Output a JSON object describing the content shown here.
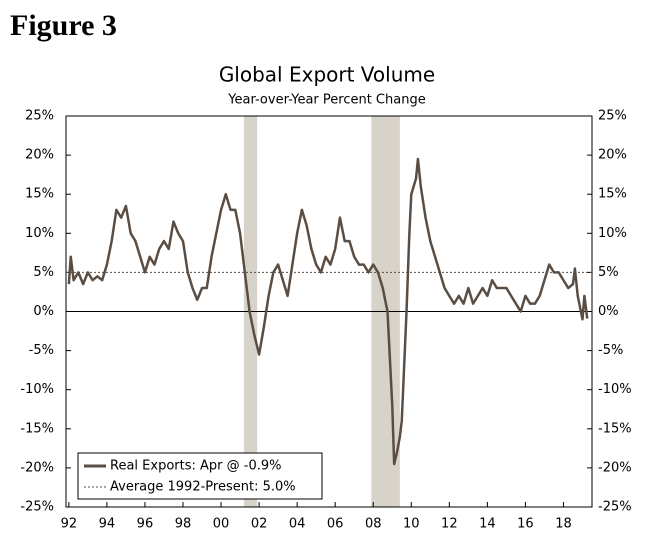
{
  "figure_label": "Figure 3",
  "chart_data": {
    "type": "line",
    "title": "Global Export Volume",
    "subtitle": "Year-over-Year Percent Change",
    "x": [
      1992.0,
      1992.1,
      1992.25,
      1992.5,
      1992.75,
      1993.0,
      1993.25,
      1993.5,
      1993.75,
      1994.0,
      1994.25,
      1994.5,
      1994.75,
      1995.0,
      1995.25,
      1995.5,
      1995.75,
      1996.0,
      1996.25,
      1996.5,
      1996.75,
      1997.0,
      1997.25,
      1997.5,
      1997.75,
      1998.0,
      1998.25,
      1998.5,
      1998.75,
      1999.0,
      1999.25,
      1999.5,
      1999.75,
      2000.0,
      2000.25,
      2000.5,
      2000.75,
      2001.0,
      2001.25,
      2001.5,
      2001.75,
      2002.0,
      2002.25,
      2002.5,
      2002.75,
      2003.0,
      2003.25,
      2003.5,
      2003.75,
      2004.0,
      2004.25,
      2004.5,
      2004.75,
      2005.0,
      2005.25,
      2005.5,
      2005.75,
      2006.0,
      2006.25,
      2006.5,
      2006.75,
      2007.0,
      2007.25,
      2007.5,
      2007.75,
      2008.0,
      2008.25,
      2008.5,
      2008.75,
      2009.0,
      2009.1,
      2009.25,
      2009.4,
      2009.5,
      2009.75,
      2009.9,
      2010.0,
      2010.25,
      2010.35,
      2010.5,
      2010.75,
      2011.0,
      2011.25,
      2011.5,
      2011.75,
      2012.0,
      2012.25,
      2012.5,
      2012.75,
      2013.0,
      2013.25,
      2013.5,
      2013.75,
      2014.0,
      2014.25,
      2014.5,
      2014.75,
      2015.0,
      2015.25,
      2015.5,
      2015.75,
      2016.0,
      2016.25,
      2016.5,
      2016.75,
      2017.0,
      2017.25,
      2017.5,
      2017.75,
      2018.0,
      2018.25,
      2018.5,
      2018.6,
      2018.75,
      2019.0,
      2019.1,
      2019.25
    ],
    "series": [
      {
        "name": "Real Exports: Apr @ -0.9%",
        "color": "#5a4e44",
        "values": [
          3.5,
          7,
          4,
          5,
          3.5,
          5,
          4,
          4.5,
          4,
          6,
          9,
          13,
          12,
          13.5,
          10,
          9,
          7,
          5,
          7,
          6,
          8,
          9,
          8,
          11.5,
          10,
          9,
          5,
          3,
          1.5,
          3,
          3,
          7,
          10,
          13,
          15,
          13,
          13,
          10,
          5,
          0,
          -3,
          -5.5,
          -2,
          2,
          5,
          6,
          4,
          2,
          6,
          10,
          13,
          11,
          8,
          6,
          5,
          7,
          6,
          8,
          12,
          9,
          9,
          7,
          6,
          6,
          5,
          6,
          5,
          3,
          0,
          -12,
          -19.5,
          -18,
          -16,
          -14,
          0,
          10,
          15,
          17,
          19.5,
          16,
          12,
          9,
          7,
          5,
          3,
          2,
          1,
          2,
          1,
          3,
          1,
          2,
          3,
          2,
          4,
          3,
          3,
          3,
          2,
          1,
          0,
          2,
          1,
          1,
          2,
          4,
          6,
          5,
          5,
          4,
          3,
          3.5,
          5.5,
          2,
          -1,
          2,
          -0.9
        ]
      }
    ],
    "reference_line": {
      "name": "Average 1992-Present: 5.0%",
      "value": 5.0,
      "color": "#5a4e44"
    },
    "shaded_regions": [
      {
        "start": 2001.2,
        "end": 2001.9
      },
      {
        "start": 2007.9,
        "end": 2009.4
      }
    ],
    "shade_color": "#d8d3c8",
    "xlim": [
      1991.85,
      2019.5
    ],
    "xticks": [
      {
        "value": 1992,
        "label": "92"
      },
      {
        "value": 1994,
        "label": "94"
      },
      {
        "value": 1996,
        "label": "96"
      },
      {
        "value": 1998,
        "label": "98"
      },
      {
        "value": 2000,
        "label": "00"
      },
      {
        "value": 2002,
        "label": "02"
      },
      {
        "value": 2004,
        "label": "04"
      },
      {
        "value": 2006,
        "label": "06"
      },
      {
        "value": 2008,
        "label": "08"
      },
      {
        "value": 2010,
        "label": "10"
      },
      {
        "value": 2012,
        "label": "12"
      },
      {
        "value": 2014,
        "label": "14"
      },
      {
        "value": 2016,
        "label": "16"
      },
      {
        "value": 2018,
        "label": "18"
      }
    ],
    "ylim": [
      -25,
      25
    ],
    "yticks": [
      {
        "value": 25,
        "label": "25%"
      },
      {
        "value": 20,
        "label": "20%"
      },
      {
        "value": 15,
        "label": "15%"
      },
      {
        "value": 10,
        "label": "10%"
      },
      {
        "value": 5,
        "label": "5%"
      },
      {
        "value": 0,
        "label": "0%"
      },
      {
        "value": -5,
        "label": "-5%"
      },
      {
        "value": -10,
        "label": "-10%"
      },
      {
        "value": -15,
        "label": "-15%"
      },
      {
        "value": -20,
        "label": "-20%"
      },
      {
        "value": -25,
        "label": "-25%"
      }
    ],
    "legend": "lower-left"
  }
}
